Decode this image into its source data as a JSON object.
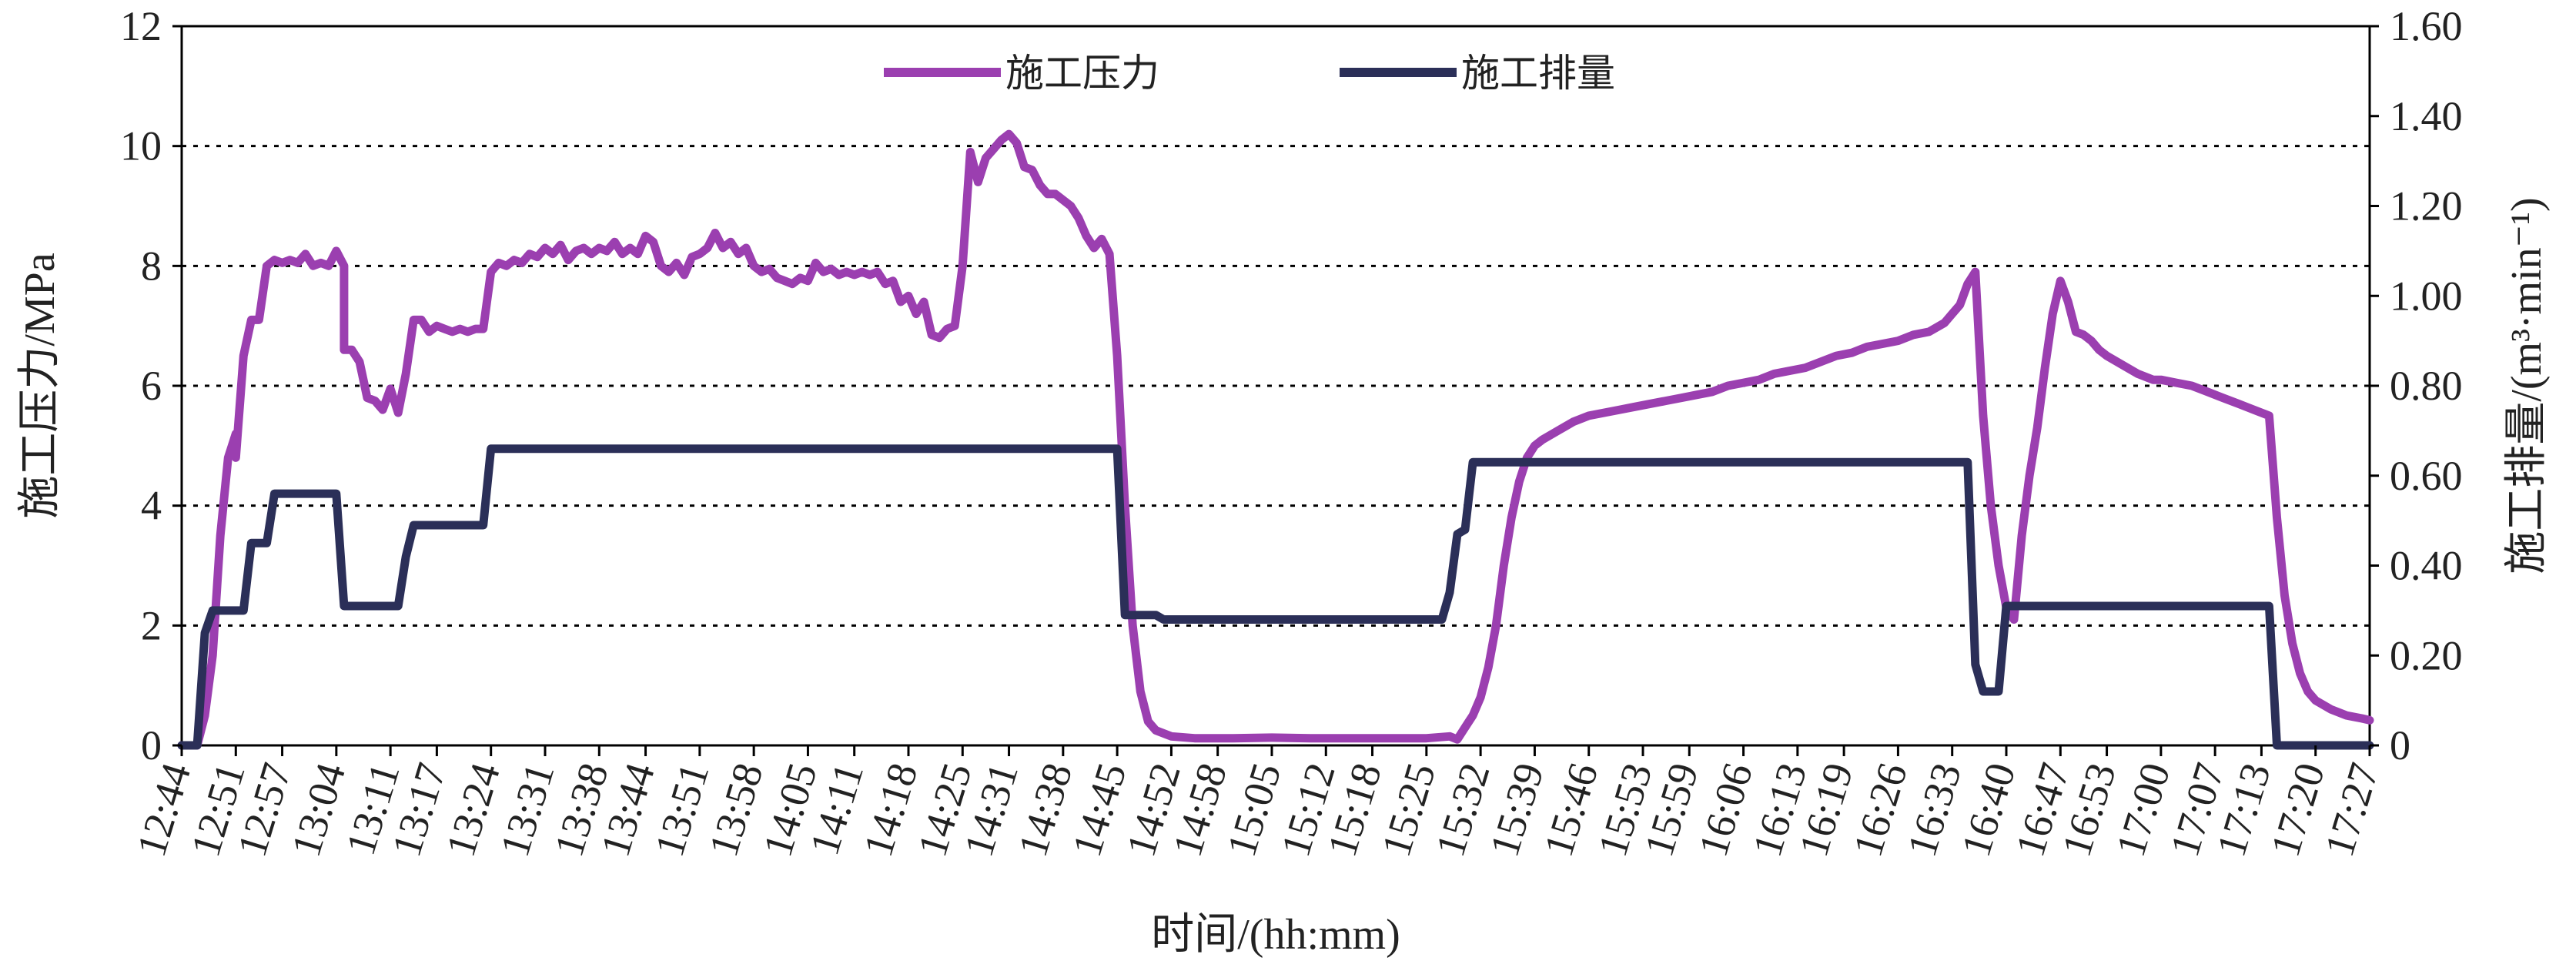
{
  "chart_data": {
    "type": "line",
    "xlabel": "时间/(hh:mm)",
    "ylabel_left": "施工压力/MPa",
    "ylabel_right": "施工排量/(m³·min⁻¹)",
    "ylim_left": [
      0,
      12
    ],
    "ylim_right": [
      0,
      1.6
    ],
    "yticks_left": [
      "0",
      "2",
      "4",
      "6",
      "8",
      "10",
      "12"
    ],
    "yticks_right": [
      "0",
      "0.20",
      "0.40",
      "0.60",
      "0.80",
      "1.00",
      "1.20",
      "1.40",
      "1.60"
    ],
    "xticks": [
      "12:44",
      "12:51",
      "12:57",
      "13:04",
      "13:11",
      "13:17",
      "13:24",
      "13:31",
      "13:38",
      "13:44",
      "13:51",
      "13:58",
      "14:05",
      "14:11",
      "14:18",
      "14:25",
      "14:31",
      "14:38",
      "14:45",
      "14:52",
      "14:58",
      "15:05",
      "15:12",
      "15:18",
      "15:25",
      "15:32",
      "15:39",
      "15:46",
      "15:53",
      "15:59",
      "16:06",
      "16:13",
      "16:19",
      "16:26",
      "16:33",
      "16:40",
      "16:47",
      "16:53",
      "17:00",
      "17:07",
      "17:13",
      "17:20",
      "17:27"
    ],
    "grid": "horizontal dotted",
    "legend_position": "top",
    "series": [
      {
        "name": "施工压力",
        "axis": "left",
        "color": "#9b3fb0",
        "points": [
          [
            "12:44",
            0
          ],
          [
            "12:46",
            0
          ],
          [
            "12:47",
            0.5
          ],
          [
            "12:48",
            1.5
          ],
          [
            "12:49",
            3.5
          ],
          [
            "12:50",
            4.8
          ],
          [
            "12:51",
            5.2
          ],
          [
            "12:51",
            4.8
          ],
          [
            "12:52",
            6.5
          ],
          [
            "12:53",
            7.1
          ],
          [
            "12:54",
            7.1
          ],
          [
            "12:55",
            8.0
          ],
          [
            "12:56",
            8.1
          ],
          [
            "12:57",
            8.05
          ],
          [
            "12:58",
            8.1
          ],
          [
            "12:59",
            8.05
          ],
          [
            "13:00",
            8.2
          ],
          [
            "13:01",
            8.0
          ],
          [
            "13:02",
            8.05
          ],
          [
            "13:03",
            8.0
          ],
          [
            "13:04",
            8.25
          ],
          [
            "13:05",
            8.0
          ],
          [
            "13:05",
            6.6
          ],
          [
            "13:06",
            6.6
          ],
          [
            "13:07",
            6.4
          ],
          [
            "13:08",
            5.8
          ],
          [
            "13:09",
            5.75
          ],
          [
            "13:10",
            5.6
          ],
          [
            "13:11",
            5.95
          ],
          [
            "13:12",
            5.55
          ],
          [
            "13:13",
            6.2
          ],
          [
            "13:14",
            7.1
          ],
          [
            "13:15",
            7.1
          ],
          [
            "13:16",
            6.9
          ],
          [
            "13:17",
            7.0
          ],
          [
            "13:18",
            6.95
          ],
          [
            "13:19",
            6.9
          ],
          [
            "13:20",
            6.95
          ],
          [
            "13:21",
            6.9
          ],
          [
            "13:22",
            6.95
          ],
          [
            "13:23",
            6.95
          ],
          [
            "13:24",
            7.9
          ],
          [
            "13:25",
            8.05
          ],
          [
            "13:26",
            8.0
          ],
          [
            "13:27",
            8.1
          ],
          [
            "13:28",
            8.05
          ],
          [
            "13:29",
            8.2
          ],
          [
            "13:30",
            8.15
          ],
          [
            "13:31",
            8.3
          ],
          [
            "13:32",
            8.2
          ],
          [
            "13:33",
            8.35
          ],
          [
            "13:34",
            8.1
          ],
          [
            "13:35",
            8.25
          ],
          [
            "13:36",
            8.3
          ],
          [
            "13:37",
            8.2
          ],
          [
            "13:38",
            8.3
          ],
          [
            "13:39",
            8.25
          ],
          [
            "13:40",
            8.4
          ],
          [
            "13:41",
            8.2
          ],
          [
            "13:42",
            8.3
          ],
          [
            "13:43",
            8.2
          ],
          [
            "13:44",
            8.5
          ],
          [
            "13:45",
            8.4
          ],
          [
            "13:46",
            8.0
          ],
          [
            "13:47",
            7.9
          ],
          [
            "13:48",
            8.05
          ],
          [
            "13:49",
            7.85
          ],
          [
            "13:50",
            8.15
          ],
          [
            "13:51",
            8.2
          ],
          [
            "13:52",
            8.3
          ],
          [
            "13:53",
            8.55
          ],
          [
            "13:54",
            8.3
          ],
          [
            "13:55",
            8.4
          ],
          [
            "13:56",
            8.2
          ],
          [
            "13:57",
            8.3
          ],
          [
            "13:58",
            8.0
          ],
          [
            "13:59",
            7.9
          ],
          [
            "14:00",
            7.95
          ],
          [
            "14:01",
            7.8
          ],
          [
            "14:02",
            7.75
          ],
          [
            "14:03",
            7.7
          ],
          [
            "14:04",
            7.8
          ],
          [
            "14:05",
            7.75
          ],
          [
            "14:06",
            8.05
          ],
          [
            "14:07",
            7.9
          ],
          [
            "14:08",
            7.95
          ],
          [
            "14:09",
            7.85
          ],
          [
            "14:10",
            7.9
          ],
          [
            "14:11",
            7.85
          ],
          [
            "14:12",
            7.9
          ],
          [
            "14:13",
            7.85
          ],
          [
            "14:14",
            7.9
          ],
          [
            "14:15",
            7.7
          ],
          [
            "14:16",
            7.75
          ],
          [
            "14:17",
            7.4
          ],
          [
            "14:18",
            7.5
          ],
          [
            "14:19",
            7.2
          ],
          [
            "14:20",
            7.4
          ],
          [
            "14:21",
            6.85
          ],
          [
            "14:22",
            6.8
          ],
          [
            "14:23",
            6.95
          ],
          [
            "14:24",
            7.0
          ],
          [
            "14:25",
            8.0
          ],
          [
            "14:26",
            9.9
          ],
          [
            "14:27",
            9.4
          ],
          [
            "14:28",
            9.8
          ],
          [
            "14:29",
            9.95
          ],
          [
            "14:30",
            10.1
          ],
          [
            "14:31",
            10.2
          ],
          [
            "14:32",
            10.05
          ],
          [
            "14:33",
            9.65
          ],
          [
            "14:34",
            9.6
          ],
          [
            "14:35",
            9.35
          ],
          [
            "14:36",
            9.2
          ],
          [
            "14:37",
            9.2
          ],
          [
            "14:38",
            9.1
          ],
          [
            "14:39",
            9.0
          ],
          [
            "14:40",
            8.8
          ],
          [
            "14:41",
            8.5
          ],
          [
            "14:42",
            8.3
          ],
          [
            "14:43",
            8.45
          ],
          [
            "14:44",
            8.2
          ],
          [
            "14:45",
            6.5
          ],
          [
            "14:46",
            4.0
          ],
          [
            "14:47",
            2.0
          ],
          [
            "14:48",
            0.9
          ],
          [
            "14:49",
            0.4
          ],
          [
            "14:50",
            0.25
          ],
          [
            "14:52",
            0.15
          ],
          [
            "14:55",
            0.12
          ],
          [
            "15:00",
            0.12
          ],
          [
            "15:05",
            0.13
          ],
          [
            "15:10",
            0.12
          ],
          [
            "15:15",
            0.12
          ],
          [
            "15:20",
            0.12
          ],
          [
            "15:25",
            0.12
          ],
          [
            "15:28",
            0.15
          ],
          [
            "15:29",
            0.1
          ],
          [
            "15:30",
            0.3
          ],
          [
            "15:31",
            0.5
          ],
          [
            "15:32",
            0.8
          ],
          [
            "15:33",
            1.3
          ],
          [
            "15:34",
            2.0
          ],
          [
            "15:35",
            3.0
          ],
          [
            "15:36",
            3.8
          ],
          [
            "15:37",
            4.4
          ],
          [
            "15:38",
            4.8
          ],
          [
            "15:39",
            5.0
          ],
          [
            "15:40",
            5.1
          ],
          [
            "15:42",
            5.25
          ],
          [
            "15:44",
            5.4
          ],
          [
            "15:46",
            5.5
          ],
          [
            "15:48",
            5.55
          ],
          [
            "15:50",
            5.6
          ],
          [
            "15:52",
            5.65
          ],
          [
            "15:54",
            5.7
          ],
          [
            "15:56",
            5.75
          ],
          [
            "15:58",
            5.8
          ],
          [
            "16:00",
            5.85
          ],
          [
            "16:02",
            5.9
          ],
          [
            "16:04",
            6.0
          ],
          [
            "16:06",
            6.05
          ],
          [
            "16:08",
            6.1
          ],
          [
            "16:10",
            6.2
          ],
          [
            "16:12",
            6.25
          ],
          [
            "16:14",
            6.3
          ],
          [
            "16:16",
            6.4
          ],
          [
            "16:18",
            6.5
          ],
          [
            "16:20",
            6.55
          ],
          [
            "16:22",
            6.65
          ],
          [
            "16:24",
            6.7
          ],
          [
            "16:26",
            6.75
          ],
          [
            "16:28",
            6.85
          ],
          [
            "16:30",
            6.9
          ],
          [
            "16:32",
            7.05
          ],
          [
            "16:33",
            7.2
          ],
          [
            "16:34",
            7.35
          ],
          [
            "16:35",
            7.7
          ],
          [
            "16:36",
            7.9
          ],
          [
            "16:37",
            5.5
          ],
          [
            "16:38",
            4.0
          ],
          [
            "16:39",
            3.0
          ],
          [
            "16:40",
            2.3
          ],
          [
            "16:41",
            2.1
          ],
          [
            "16:42",
            3.5
          ],
          [
            "16:43",
            4.5
          ],
          [
            "16:44",
            5.3
          ],
          [
            "16:45",
            6.3
          ],
          [
            "16:46",
            7.2
          ],
          [
            "16:47",
            7.75
          ],
          [
            "16:48",
            7.4
          ],
          [
            "16:49",
            6.9
          ],
          [
            "16:50",
            6.85
          ],
          [
            "16:51",
            6.75
          ],
          [
            "16:52",
            6.6
          ],
          [
            "16:53",
            6.5
          ],
          [
            "16:55",
            6.35
          ],
          [
            "16:57",
            6.2
          ],
          [
            "16:59",
            6.1
          ],
          [
            "17:00",
            6.1
          ],
          [
            "17:02",
            6.05
          ],
          [
            "17:04",
            6.0
          ],
          [
            "17:06",
            5.9
          ],
          [
            "17:08",
            5.8
          ],
          [
            "17:10",
            5.7
          ],
          [
            "17:12",
            5.6
          ],
          [
            "17:14",
            5.5
          ],
          [
            "17:15",
            3.8
          ],
          [
            "17:16",
            2.5
          ],
          [
            "17:17",
            1.7
          ],
          [
            "17:18",
            1.2
          ],
          [
            "17:19",
            0.9
          ],
          [
            "17:20",
            0.75
          ],
          [
            "17:22",
            0.6
          ],
          [
            "17:24",
            0.5
          ],
          [
            "17:26",
            0.45
          ],
          [
            "17:27",
            0.42
          ]
        ]
      },
      {
        "name": "施工排量",
        "axis": "right",
        "color": "#2b2f58",
        "points": [
          [
            "12:44",
            0
          ],
          [
            "12:46",
            0
          ],
          [
            "12:47",
            0.25
          ],
          [
            "12:48",
            0.3
          ],
          [
            "12:52",
            0.3
          ],
          [
            "12:53",
            0.45
          ],
          [
            "12:55",
            0.45
          ],
          [
            "12:56",
            0.56
          ],
          [
            "13:04",
            0.56
          ],
          [
            "13:05",
            0.31
          ],
          [
            "13:12",
            0.31
          ],
          [
            "13:13",
            0.42
          ],
          [
            "13:14",
            0.49
          ],
          [
            "13:23",
            0.49
          ],
          [
            "13:24",
            0.66
          ],
          [
            "14:45",
            0.66
          ],
          [
            "14:46",
            0.29
          ],
          [
            "14:50",
            0.29
          ],
          [
            "14:51",
            0.28
          ],
          [
            "15:27",
            0.28
          ],
          [
            "15:28",
            0.34
          ],
          [
            "15:29",
            0.47
          ],
          [
            "15:30",
            0.48
          ],
          [
            "15:31",
            0.63
          ],
          [
            "16:35",
            0.63
          ],
          [
            "16:36",
            0.18
          ],
          [
            "16:37",
            0.12
          ],
          [
            "16:39",
            0.12
          ],
          [
            "16:40",
            0.31
          ],
          [
            "17:14",
            0.31
          ],
          [
            "17:15",
            0.0
          ],
          [
            "17:27",
            0.0
          ]
        ]
      }
    ]
  }
}
